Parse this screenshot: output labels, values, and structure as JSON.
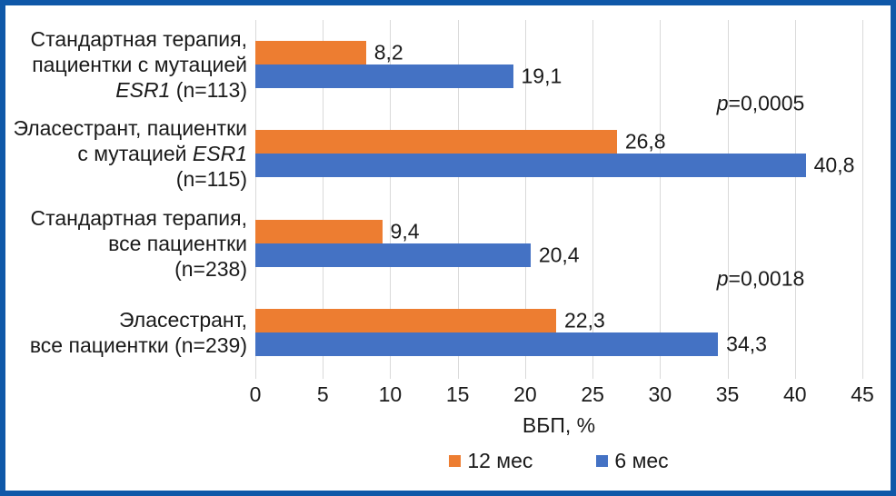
{
  "colors": {
    "frame": "#0F58A8",
    "grid": "#D9D9D9",
    "text": "#1A1A1A",
    "series_orange": "#ED7D31",
    "series_blue": "#4472C4"
  },
  "chart_data": {
    "type": "bar",
    "orientation": "horizontal",
    "title": "",
    "xlabel": "ВБП, %",
    "ylabel": "",
    "xlim": [
      0,
      45
    ],
    "xticks": [
      0,
      5,
      10,
      15,
      20,
      25,
      30,
      35,
      40,
      45
    ],
    "grid": true,
    "legend_position": "bottom",
    "decimal_separator": ",",
    "categories": [
      "Стандартная терапия, пациентки с мутацией ESR1 (n=113)",
      "Эласестрант, пациентки с мутацией ESR1 (n=115)",
      "Стандартная терапия, все пациентки (n=238)",
      "Эласестрант, все пациентки (n=239)"
    ],
    "category_lines": [
      [
        [
          {
            "t": "Стандартная терапия,"
          }
        ],
        [
          {
            "t": "пациентки с мутацией"
          }
        ],
        [
          {
            "t": "ESR1",
            "italic": true
          },
          {
            "t": " (n=113)"
          }
        ]
      ],
      [
        [
          {
            "t": "Эласестрант, пациентки"
          }
        ],
        [
          {
            "t": "с мутацией "
          },
          {
            "t": "ESR1",
            "italic": true
          }
        ],
        [
          {
            "t": "(n=115)"
          }
        ]
      ],
      [
        [
          {
            "t": "Стандартная терапия,"
          }
        ],
        [
          {
            "t": "все пациентки"
          }
        ],
        [
          {
            "t": "(n=238)"
          }
        ]
      ],
      [
        [
          {
            "t": "Эласестрант,"
          }
        ],
        [
          {
            "t": "все пациентки (n=239)"
          }
        ]
      ]
    ],
    "series": [
      {
        "name": "12 мес",
        "color": "#ED7D31",
        "values": [
          8.2,
          26.8,
          9.4,
          22.3
        ],
        "value_labels": [
          "8,2",
          "26,8",
          "9,4",
          "22,3"
        ]
      },
      {
        "name": "6 мес",
        "color": "#4472C4",
        "values": [
          19.1,
          40.8,
          20.4,
          34.3
        ],
        "value_labels": [
          "19,1",
          "40,8",
          "20,4",
          "34,3"
        ]
      }
    ],
    "annotations": [
      {
        "italic_prefix": "p",
        "text": "=0,0005"
      },
      {
        "italic_prefix": "p",
        "text": "=0,0018"
      }
    ],
    "legend": [
      "12 мес",
      "6 мес"
    ]
  }
}
